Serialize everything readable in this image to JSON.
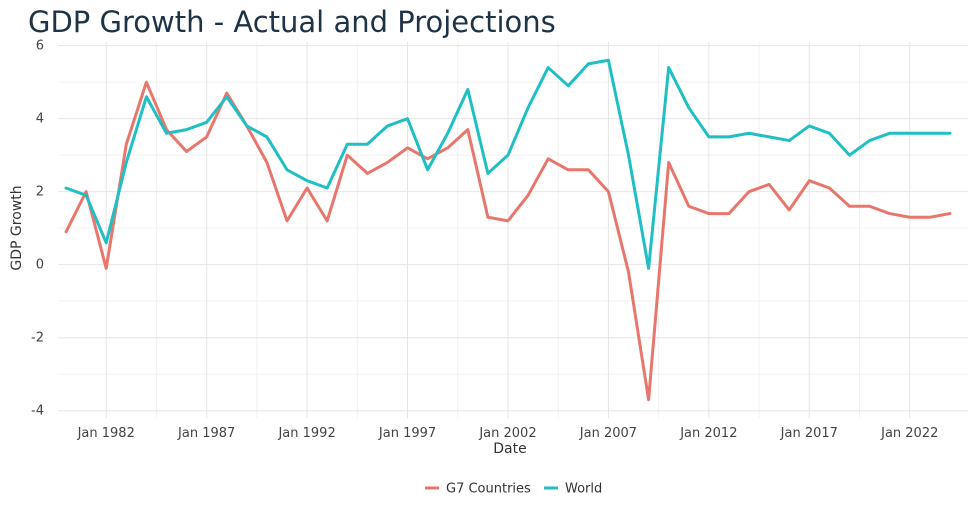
{
  "chart_data": {
    "type": "line",
    "title": "GDP Growth - Actual and Projections",
    "xlabel": "Date",
    "ylabel": "GDP Growth",
    "x": [
      1980,
      1981,
      1982,
      1983,
      1984,
      1985,
      1986,
      1987,
      1988,
      1989,
      1990,
      1991,
      1992,
      1993,
      1994,
      1995,
      1996,
      1997,
      1998,
      1999,
      2000,
      2001,
      2002,
      2003,
      2004,
      2005,
      2006,
      2007,
      2008,
      2009,
      2010,
      2011,
      2012,
      2013,
      2014,
      2015,
      2016,
      2017,
      2018,
      2019,
      2020,
      2021,
      2022,
      2023,
      2024
    ],
    "x_ticks": [
      "Jan 1982",
      "Jan 1987",
      "Jan 1992",
      "Jan 1997",
      "Jan 2002",
      "Jan 2007",
      "Jan 2012",
      "Jan 2017",
      "Jan 2022"
    ],
    "x_tick_years": [
      1982,
      1987,
      1992,
      1997,
      2002,
      2007,
      2012,
      2017,
      2022
    ],
    "y_ticks": [
      "6",
      "4",
      "2",
      "0",
      "-2",
      "-4"
    ],
    "y_tick_values": [
      6,
      4,
      2,
      0,
      -2,
      -4
    ],
    "ylim": [
      -4.2,
      6.1
    ],
    "xlim": [
      1979.6,
      2024.9
    ],
    "grid": true,
    "legend_position": "bottom",
    "series": [
      {
        "name": "G7 Countries",
        "color": "#E8766D",
        "values": [
          0.9,
          2.0,
          -0.1,
          3.3,
          5.0,
          3.7,
          3.1,
          3.5,
          4.7,
          3.8,
          2.8,
          1.2,
          2.1,
          1.2,
          3.0,
          2.5,
          2.8,
          3.2,
          2.9,
          3.2,
          3.7,
          1.3,
          1.2,
          1.9,
          2.9,
          2.6,
          2.6,
          2.0,
          -0.2,
          -3.7,
          2.8,
          1.6,
          1.4,
          1.4,
          2.0,
          2.2,
          1.5,
          2.3,
          2.1,
          1.6,
          1.6,
          1.4,
          1.3,
          1.3,
          1.4
        ]
      },
      {
        "name": "World",
        "color": "#1FBFC4",
        "values": [
          2.1,
          1.9,
          0.6,
          2.8,
          4.6,
          3.6,
          3.7,
          3.9,
          4.6,
          3.8,
          3.5,
          2.6,
          2.3,
          2.1,
          3.3,
          3.3,
          3.8,
          4.0,
          2.6,
          3.6,
          4.8,
          2.5,
          3.0,
          4.3,
          5.4,
          4.9,
          5.5,
          5.6,
          3.0,
          -0.1,
          5.4,
          4.3,
          3.5,
          3.5,
          3.6,
          3.5,
          3.4,
          3.8,
          3.6,
          3.0,
          3.4,
          3.6,
          3.6,
          3.6,
          3.6
        ]
      }
    ]
  }
}
